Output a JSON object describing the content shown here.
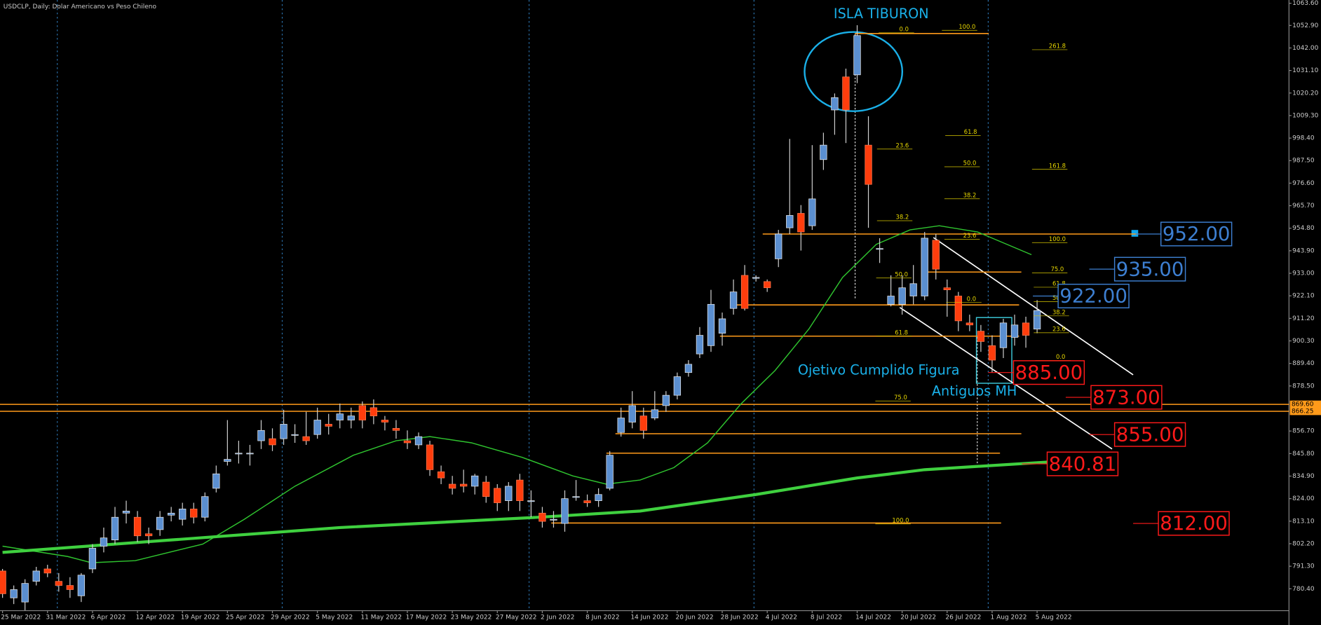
{
  "header": {
    "title": "USDCLP, Daily:  Dolar Americano vs Peso Chileno"
  },
  "chart_data": {
    "type": "candlestick",
    "categories": [
      "25 Mar 2022",
      null,
      null,
      null,
      "31 Mar 2022",
      null,
      null,
      null,
      "6 Apr 2022",
      null,
      null,
      null,
      "12 Apr 2022",
      null,
      null,
      null,
      "19 Apr 2022",
      null,
      null,
      null,
      "25 Apr 2022",
      null,
      null,
      null,
      "29 Apr 2022",
      null,
      null,
      null,
      "5 May 2022",
      null,
      null,
      null,
      "11 May 2022",
      null,
      null,
      null,
      "17 May 2022",
      null,
      null,
      null,
      "23 May 2022",
      null,
      null,
      null,
      "27 May 2022",
      null,
      null,
      null,
      "2 Jun 2022",
      null,
      null,
      null,
      "8 Jun 2022",
      null,
      null,
      null,
      "14 Jun 2022",
      null,
      null,
      null,
      "20 Jun 2022",
      null,
      null,
      null,
      "28 Jun 2022",
      null,
      null,
      null,
      "4 Jul 2022",
      null,
      null,
      null,
      "8 Jul 2022",
      null,
      null,
      null,
      "14 Jul 2022",
      null,
      null,
      null,
      "20 Jul 2022",
      null,
      null,
      null,
      "26 Jul 2022",
      null,
      null,
      null,
      "1 Aug 2022",
      null,
      null,
      null,
      "5 Aug 2022"
    ],
    "ohlc": [
      [
        789,
        790,
        776,
        778
      ],
      [
        776,
        782,
        773,
        780
      ],
      [
        774,
        785,
        770,
        783
      ],
      [
        784,
        791,
        782,
        789
      ],
      [
        790,
        792,
        786,
        788
      ],
      [
        784,
        788,
        779,
        782
      ],
      [
        782,
        786,
        776,
        780
      ],
      [
        777,
        788,
        774,
        787
      ],
      [
        790,
        802,
        788,
        800
      ],
      [
        801,
        810,
        798,
        805
      ],
      [
        804,
        820,
        802,
        815
      ],
      [
        817,
        823,
        812,
        818
      ],
      [
        815,
        818,
        803,
        806
      ],
      [
        807,
        810,
        802,
        806
      ],
      [
        809,
        818,
        806,
        815
      ],
      [
        816,
        820,
        813,
        817
      ],
      [
        814,
        822,
        811,
        819
      ],
      [
        819,
        822,
        812,
        815
      ],
      [
        815,
        827,
        813,
        825
      ],
      [
        829,
        840,
        827,
        836
      ],
      [
        842,
        862,
        840,
        843
      ],
      [
        846,
        852,
        841,
        846
      ],
      [
        846,
        850,
        840,
        846
      ],
      [
        852,
        862,
        848,
        857
      ],
      [
        853,
        858,
        847,
        850
      ],
      [
        853,
        867,
        850,
        860
      ],
      [
        855,
        860,
        851,
        855
      ],
      [
        854,
        866,
        850,
        852
      ],
      [
        855,
        868,
        853,
        862
      ],
      [
        860,
        865,
        855,
        859
      ],
      [
        862,
        870,
        858,
        865
      ],
      [
        862,
        868,
        858,
        864
      ],
      [
        869,
        871,
        858,
        862
      ],
      [
        868,
        872,
        860,
        864
      ],
      [
        862,
        864,
        857,
        861
      ],
      [
        858,
        862,
        853,
        857
      ],
      [
        852,
        857,
        848,
        851
      ],
      [
        850,
        856,
        848,
        854
      ],
      [
        850,
        852,
        835,
        838
      ],
      [
        837,
        840,
        831,
        834
      ],
      [
        831,
        835,
        826,
        829
      ],
      [
        831,
        838,
        827,
        830
      ],
      [
        830,
        836,
        826,
        835
      ],
      [
        832,
        835,
        822,
        825
      ],
      [
        829,
        831,
        818,
        822
      ],
      [
        823,
        832,
        818,
        830
      ],
      [
        833,
        836,
        818,
        823
      ],
      [
        823,
        828,
        815,
        823
      ],
      [
        817,
        820,
        810,
        813
      ],
      [
        814,
        818,
        810,
        814
      ],
      [
        812,
        828,
        808,
        824
      ],
      [
        825,
        833,
        823,
        825
      ],
      [
        823,
        826,
        820,
        822
      ],
      [
        823,
        829,
        820,
        826
      ],
      [
        829,
        847,
        828,
        845
      ],
      [
        856,
        868,
        854,
        863
      ],
      [
        861,
        876,
        858,
        869
      ],
      [
        864,
        868,
        853,
        857
      ],
      [
        863,
        876,
        862,
        867
      ],
      [
        869,
        876,
        866,
        874
      ],
      [
        874,
        885,
        872,
        883
      ],
      [
        885,
        891,
        883,
        889
      ],
      [
        894,
        907,
        892,
        903
      ],
      [
        898,
        925,
        895,
        918
      ],
      [
        904,
        914,
        898,
        911
      ],
      [
        916,
        930,
        913,
        924
      ],
      [
        932,
        937,
        915,
        916
      ],
      [
        931,
        932,
        929,
        931
      ],
      [
        929,
        930,
        924,
        926
      ],
      [
        940,
        954,
        936,
        952
      ],
      [
        955,
        998,
        952,
        961
      ],
      [
        962,
        966,
        944,
        953
      ],
      [
        956,
        995,
        954,
        969
      ],
      [
        988,
        1001,
        983,
        995
      ],
      [
        1012,
        1020,
        1000,
        1018
      ],
      [
        1028,
        1032,
        996,
        1012
      ],
      [
        1029,
        1053,
        1025,
        1048
      ],
      [
        995,
        1009,
        955,
        976
      ],
      [
        945,
        950,
        938,
        945
      ],
      [
        918,
        932,
        917,
        922
      ],
      [
        918,
        932,
        913,
        926
      ],
      [
        922,
        937,
        918,
        928
      ],
      [
        922,
        953,
        920,
        950
      ],
      [
        949,
        952,
        930,
        935
      ],
      [
        926,
        930,
        912,
        925
      ],
      [
        922,
        924,
        905,
        910
      ],
      [
        909,
        913,
        905,
        908
      ],
      [
        905,
        908,
        895,
        900
      ],
      [
        898,
        903,
        885,
        891
      ],
      [
        897,
        911,
        892,
        909
      ],
      [
        902,
        913,
        898,
        908
      ],
      [
        909,
        912,
        897,
        903
      ],
      [
        906,
        920,
        904,
        915
      ]
    ],
    "colors": {
      "up": "#5b8fd0",
      "down": "#ff3d0d"
    },
    "xlim": [
      -0.225,
      114.4
    ],
    "ylim": [
      769.8,
      1065.2
    ],
    "yticks": [
      {
        "value": 1063.6,
        "label": "1063.60"
      },
      {
        "value": 1052.9,
        "label": "1052.90"
      },
      {
        "value": 1042,
        "label": "1042.00"
      },
      {
        "value": 1031.1,
        "label": "1031.10"
      },
      {
        "value": 1020.2,
        "label": "1020.20"
      },
      {
        "value": 1009.3,
        "label": "1009.30"
      },
      {
        "value": 998.4,
        "label": "998.40"
      },
      {
        "value": 987.5,
        "label": "987.50"
      },
      {
        "value": 976.6,
        "label": "976.60"
      },
      {
        "value": 965.7,
        "label": "965.70"
      },
      {
        "value": 954.8,
        "label": "954.80"
      },
      {
        "value": 943.9,
        "label": "943.90"
      },
      {
        "value": 933,
        "label": "933.00"
      },
      {
        "value": 922.1,
        "label": "922.10"
      },
      {
        "value": 911.2,
        "label": "911.20"
      },
      {
        "value": 900.3,
        "label": "900.30"
      },
      {
        "value": 889.4,
        "label": "889.40"
      },
      {
        "value": 878.5,
        "label": "878.50"
      },
      {
        "value": 856.7,
        "label": "856.70"
      },
      {
        "value": 845.8,
        "label": "845.80"
      },
      {
        "value": 834.9,
        "label": "834.90"
      },
      {
        "value": 824,
        "label": "824.00"
      },
      {
        "value": 813.1,
        "label": "813.10"
      },
      {
        "value": 802.2,
        "label": "802.20"
      },
      {
        "value": 791.3,
        "label": "791.30"
      },
      {
        "value": 780.4,
        "label": "780.40"
      }
    ],
    "overlays": [
      {
        "color": "#2fc42f",
        "width": 1.2,
        "x": [
          0,
          5.8,
          7.9,
          11.8,
          17.8,
          21.5,
          26,
          31.2,
          35,
          38,
          41.7,
          46.2,
          50.7,
          53.7,
          56.7,
          59.7,
          62.7,
          65.7,
          68.7,
          71.7,
          74.7,
          77.7,
          80.7,
          83.3,
          86.7,
          91.5
        ],
        "values": [
          801,
          796,
          793,
          794,
          802,
          814,
          830,
          845,
          852,
          854,
          851,
          844,
          835,
          831,
          833,
          839,
          851,
          870,
          886,
          906,
          931,
          947,
          954,
          956,
          953,
          942
        ]
      },
      {
        "color": "#3fd03f",
        "width": 3.5,
        "x": [
          0,
          15,
          30,
          47.7,
          56.7,
          67,
          76,
          82,
          93.8
        ],
        "values": [
          798,
          804,
          810,
          815,
          818,
          826,
          834,
          838,
          842
        ]
      }
    ],
    "levels": [
      {
        "value": 1049,
        "x": [
          75.8,
          87.7
        ]
      },
      {
        "value": 952,
        "x": [
          67.6,
          101
        ]
      },
      {
        "value": 933.6,
        "x": [
          82.2,
          90.6
        ]
      },
      {
        "value": 917.7,
        "x": [
          65,
          90.4
        ]
      },
      {
        "value": 902.6,
        "x": [
          63.8,
          90.4
        ]
      },
      {
        "value": 869.6,
        "x": [
          -0.225,
          114.4
        ]
      },
      {
        "value": 866.25,
        "x": [
          -0.225,
          114.4
        ]
      },
      {
        "value": 855.4,
        "x": [
          54.5,
          90.6
        ]
      },
      {
        "value": 846,
        "x": [
          53.7,
          88.7
        ]
      },
      {
        "value": 812.2,
        "x": [
          48.8,
          88.8
        ]
      }
    ],
    "level_color": "#ff9a1a",
    "axis_markers": [
      {
        "value": 869.6,
        "label": "869.60"
      },
      {
        "value": 866.25,
        "label": "866.25"
      }
    ],
    "price_labels": [
      {
        "value": 952,
        "label": "952.00",
        "color": "#3d7fd1"
      },
      {
        "value": 935,
        "label": "935.00",
        "color": "#3d7fd1"
      },
      {
        "value": 922,
        "label": "922.00",
        "color": "#3d7fd1"
      },
      {
        "value": 885,
        "label": "885.00",
        "color": "#ff1a1a"
      },
      {
        "value": 873,
        "label": "873.00",
        "color": "#ff1a1a"
      },
      {
        "value": 855,
        "label": "855.00",
        "color": "#ff1a1a"
      },
      {
        "value": 840.81,
        "label": "840.81",
        "color": "#ff1a1a"
      },
      {
        "value": 812,
        "label": "812.00",
        "color": "#ff1a1a"
      }
    ],
    "annotations": [
      "ISLA TIBURON",
      "Ojetivo Cumplido Figura",
      "Antiguos MH"
    ],
    "fib_labels": [
      "0.0",
      "100.0",
      "261.8",
      "61.8",
      "23.6",
      "50.0",
      "161.8",
      "38.2",
      "38.2",
      "23.6",
      "100.0",
      "75.0",
      "50.0",
      "61.8",
      "0.0",
      "50.0",
      "38.2",
      "61.8",
      "23.6",
      "0.0",
      "75.0",
      "100.0"
    ]
  }
}
